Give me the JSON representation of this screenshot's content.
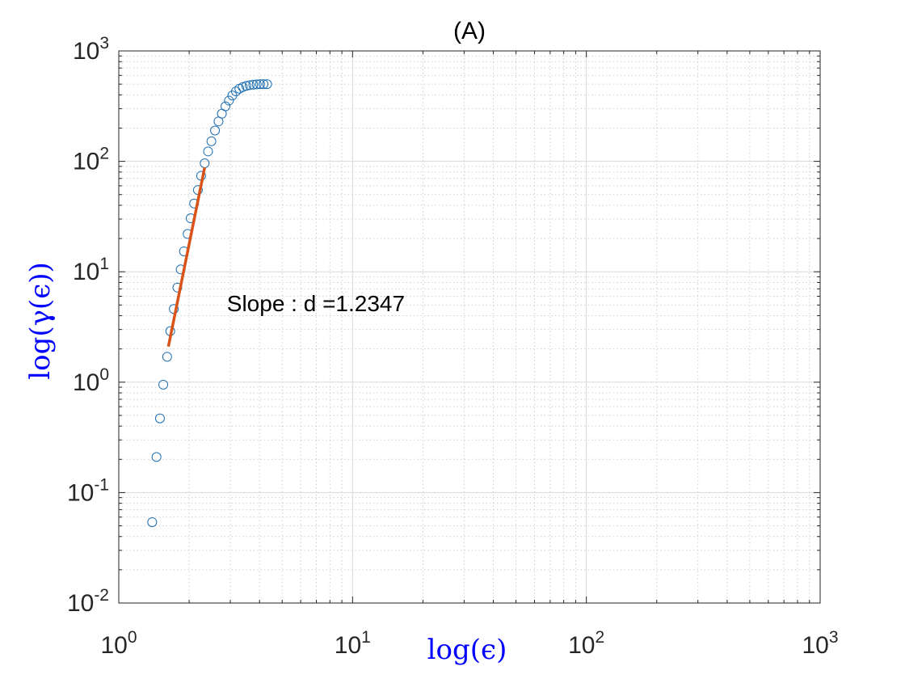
{
  "chart_data": {
    "type": "scatter",
    "title": "(A)",
    "xlabel": "log(ϵ)",
    "ylabel": "log(γ(ϵ))",
    "xscale": "log",
    "yscale": "log",
    "xlim": [
      1,
      1000
    ],
    "ylim": [
      0.01,
      1000
    ],
    "x_ticks": [
      {
        "base": "10",
        "exp": "0"
      },
      {
        "base": "10",
        "exp": "1"
      },
      {
        "base": "10",
        "exp": "2"
      },
      {
        "base": "10",
        "exp": "3"
      }
    ],
    "y_ticks": [
      {
        "base": "10",
        "exp": "-2"
      },
      {
        "base": "10",
        "exp": "-1"
      },
      {
        "base": "10",
        "exp": "0"
      },
      {
        "base": "10",
        "exp": "1"
      },
      {
        "base": "10",
        "exp": "2"
      },
      {
        "base": "10",
        "exp": "3"
      }
    ],
    "grid": true,
    "minor_grid": true,
    "box": true,
    "colors": {
      "markers": "#1f6fb2",
      "fit_line": "#d95319",
      "axis_labels": "#0000ff",
      "title": "#000000",
      "grid": "#d9d9d9",
      "axes": "#262626"
    },
    "series": [
      {
        "marker": "circle",
        "x": [
          1.39,
          1.45,
          1.5,
          1.55,
          1.61,
          1.66,
          1.72,
          1.78,
          1.84,
          1.9,
          1.97,
          2.03,
          2.1,
          2.18,
          2.25,
          2.33,
          2.41,
          2.49,
          2.58,
          2.67,
          2.76,
          2.86,
          2.96,
          3.06,
          3.17,
          3.28,
          3.39,
          3.51,
          3.63,
          3.76,
          3.89,
          4.02,
          4.16,
          4.31
        ],
        "y": [
          0.054,
          0.21,
          0.47,
          0.95,
          1.7,
          2.9,
          4.6,
          7.2,
          10.5,
          15.3,
          22,
          30.5,
          41.5,
          55,
          74,
          96,
          123,
          152,
          190,
          230,
          270,
          315,
          355,
          395,
          430,
          455,
          470,
          482,
          490,
          495,
          498,
          500,
          500,
          500
        ]
      }
    ],
    "fit_line": {
      "x": [
        1.63,
        2.33
      ],
      "y": [
        2.1,
        88
      ]
    },
    "annotations": [
      {
        "text": "Slope : d  =1.2347",
        "x": 2.9,
        "y": 5.2
      }
    ]
  }
}
